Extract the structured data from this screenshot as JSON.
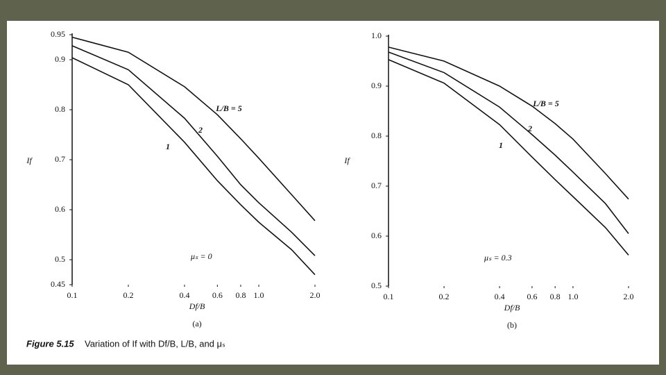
{
  "chart_data": [
    {
      "type": "line",
      "panel_label": "(a)",
      "xlabel": "Df/B",
      "ylabel": "If",
      "annotation": "μₛ = 0",
      "x": [
        0.1,
        0.2,
        0.4,
        0.6,
        0.8,
        1.0,
        1.5,
        2.0
      ],
      "series": [
        {
          "name": "L/B = 5",
          "color": "#111111",
          "values": [
            0.945,
            0.915,
            0.846,
            0.79,
            0.742,
            0.703,
            0.63,
            0.578
          ]
        },
        {
          "name": "2",
          "color": "#111111",
          "values": [
            0.928,
            0.88,
            0.783,
            0.707,
            0.65,
            0.614,
            0.555,
            0.508
          ]
        },
        {
          "name": "1",
          "color": "#111111",
          "values": [
            0.904,
            0.85,
            0.735,
            0.658,
            0.61,
            0.575,
            0.52,
            0.47
          ]
        }
      ],
      "xscale": "log",
      "xlim": [
        0.1,
        2.0
      ],
      "xticks": [
        0.1,
        0.2,
        0.4,
        0.6,
        0.8,
        {
          "value": 1,
          "label": "1.0"
        },
        {
          "value": 2,
          "label": "2.0"
        }
      ],
      "ylim": [
        0.45,
        0.95
      ],
      "yticks": [
        0.45,
        0.5,
        0.6,
        0.7,
        0.8,
        0.9,
        0.95
      ]
    },
    {
      "type": "line",
      "panel_label": "(b)",
      "xlabel": "Df/B",
      "ylabel": "If",
      "annotation": "μₛ = 0.3",
      "x": [
        0.1,
        0.2,
        0.4,
        0.6,
        0.8,
        1.0,
        1.5,
        2.0
      ],
      "series": [
        {
          "name": "L/B = 5",
          "color": "#111111",
          "values": [
            0.978,
            0.95,
            0.9,
            0.86,
            0.825,
            0.794,
            0.725,
            0.674
          ]
        },
        {
          "name": "2",
          "color": "#111111",
          "values": [
            0.968,
            0.927,
            0.858,
            0.803,
            0.762,
            0.728,
            0.665,
            0.605
          ]
        },
        {
          "name": "1",
          "color": "#111111",
          "values": [
            0.953,
            0.906,
            0.823,
            0.758,
            0.713,
            0.679,
            0.617,
            0.562
          ]
        }
      ],
      "xscale": "log",
      "xlim": [
        0.1,
        2.0
      ],
      "xticks": [
        0.1,
        0.2,
        0.4,
        0.6,
        0.8,
        {
          "value": 1,
          "label": "1.0"
        },
        {
          "value": 2,
          "label": "2.0"
        }
      ],
      "ylim": [
        0.5,
        1.0
      ],
      "yticks": [
        0.5,
        0.6,
        0.7,
        0.8,
        0.9,
        {
          "value": 1,
          "label": "1.0"
        }
      ]
    }
  ],
  "caption": {
    "label": "Figure 5.15",
    "text": "Variation of If with Df/B, L/B, and μₛ"
  }
}
